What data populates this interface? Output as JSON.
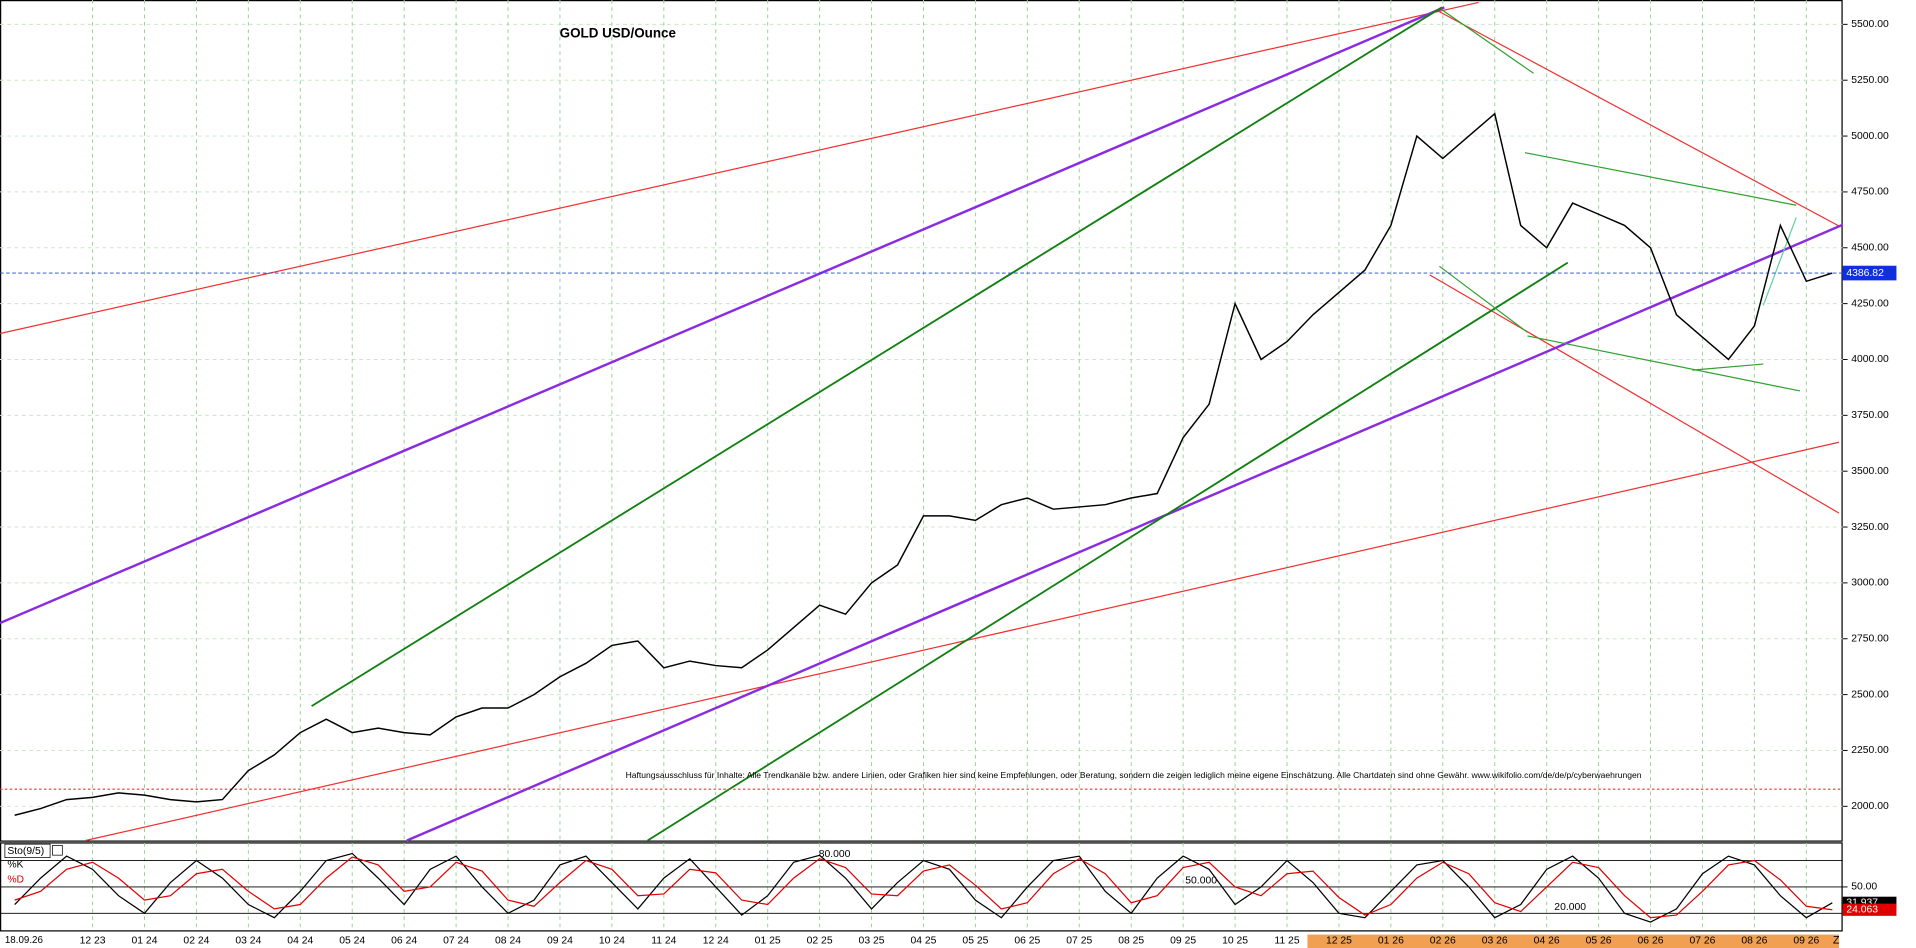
{
  "cursor_date": "18.09.26",
  "z_label": "Z",
  "disclaimer": "Haftungsausschluss für Inhalte: Alle Trendkanäle bzw. andere Linien, oder Grafiken hier sind keine Empfehlungen, oder Beratung, sondern die zeigen lediglich meine eigene Einschätzung. Alle Chartdaten sind ohne Gewähr. www.wikifolio.com/de/de/p/cyberwaehrungen",
  "chart_data": [
    {
      "type": "line",
      "title": "GOLD USD/Ounce",
      "color": "#000000",
      "categories": [
        null,
        null,
        null,
        "12 23",
        null,
        "01 24",
        null,
        "02 24",
        null,
        "03 24",
        null,
        "04 24",
        null,
        "05 24",
        null,
        "06 24",
        null,
        "07 24",
        null,
        "08 24",
        null,
        "09 24",
        null,
        "10 24",
        null,
        "11 24",
        null,
        "12 24",
        null,
        "01 25",
        null,
        "02 25",
        null,
        "03 25",
        null,
        "04 25",
        null,
        "05 25",
        null,
        "06 25",
        null,
        "07 25",
        null,
        "08 25",
        null,
        "09 25",
        null,
        "10 25",
        null,
        "11 25",
        null,
        "12 25",
        null,
        "01 26",
        null,
        "02 26",
        null,
        "03 26",
        null,
        "04 26",
        null,
        "05 26",
        null,
        "06 26",
        null,
        "07 26",
        null,
        "08 26",
        null,
        "09 26",
        null
      ],
      "values": [
        1960,
        1990,
        2030,
        2040,
        2060,
        2050,
        2030,
        2020,
        2030,
        2160,
        2230,
        2330,
        2390,
        2330,
        2350,
        2330,
        2320,
        2400,
        2440,
        2440,
        2500,
        2580,
        2640,
        2720,
        2740,
        2620,
        2650,
        2630,
        2620,
        2700,
        2800,
        2900,
        2860,
        3000,
        3080,
        3300,
        3300,
        3280,
        3350,
        3380,
        3330,
        3340,
        3350,
        3380,
        3400,
        3650,
        3800,
        4250,
        4000,
        4080,
        4200,
        4300,
        4400,
        4600,
        5000,
        4900,
        5000,
        5100,
        4600,
        4500,
        4700,
        4650,
        4600,
        4500,
        4200,
        4100,
        4000,
        4150,
        4600,
        4350,
        4386.82
      ],
      "last_price": 4386.82,
      "ylim": [
        1847,
        5609
      ],
      "yticks": [
        {
          "value": 2000,
          "label": "2000.00"
        },
        {
          "value": 2250,
          "label": "2250.00"
        },
        {
          "value": 2500,
          "label": "2500.00"
        },
        {
          "value": 2750,
          "label": "2750.00"
        },
        {
          "value": 3000,
          "label": "3000.00"
        },
        {
          "value": 3250,
          "label": "3250.00"
        },
        {
          "value": 3500,
          "label": "3500.00"
        },
        {
          "value": 3750,
          "label": "3750.00"
        },
        {
          "value": 4000,
          "label": "4000.00"
        },
        {
          "value": 4250,
          "label": "4250.00"
        },
        {
          "value": 4500,
          "label": "4500.00"
        },
        {
          "value": 4750,
          "label": "4750.00"
        },
        {
          "value": 5000,
          "label": "5000.00"
        },
        {
          "value": 5250,
          "label": "5250.00"
        },
        {
          "value": 5500,
          "label": "5500.00"
        }
      ],
      "grid": true
    },
    {
      "type": "line",
      "title": "Sto(9/5)",
      "series": [
        {
          "name": "%K",
          "color": "#000000",
          "values": [
            30,
            60,
            85,
            70,
            40,
            20,
            55,
            80,
            60,
            30,
            15,
            45,
            80,
            88,
            60,
            30,
            70,
            85,
            50,
            20,
            35,
            75,
            85,
            55,
            25,
            60,
            82,
            50,
            18,
            40,
            78,
            86,
            60,
            25,
            55,
            80,
            70,
            35,
            15,
            50,
            80,
            85,
            45,
            20,
            60,
            85,
            70,
            30,
            50,
            80,
            55,
            20,
            15,
            45,
            75,
            80,
            50,
            15,
            30,
            70,
            85,
            60,
            20,
            10,
            25,
            65,
            85,
            75,
            40,
            15,
            31.937
          ]
        },
        {
          "name": "%D",
          "color": "#e00000",
          "values": [
            35,
            45,
            70,
            78,
            60,
            35,
            40,
            65,
            70,
            45,
            25,
            30,
            60,
            84,
            75,
            45,
            50,
            78,
            68,
            35,
            28,
            55,
            80,
            70,
            40,
            42,
            70,
            66,
            35,
            30,
            60,
            82,
            72,
            42,
            40,
            68,
            75,
            52,
            25,
            32,
            65,
            82,
            65,
            32,
            40,
            72,
            78,
            50,
            40,
            65,
            68,
            38,
            18,
            30,
            60,
            78,
            65,
            32,
            22,
            50,
            78,
            72,
            40,
            15,
            18,
            45,
            75,
            80,
            58,
            28,
            24.063
          ]
        }
      ],
      "ylim": [
        0,
        100
      ],
      "levels": [
        {
          "value": 80,
          "label": "80.000"
        },
        {
          "value": 50,
          "label": "50.000"
        },
        {
          "value": 20,
          "label": "20.000"
        }
      ],
      "yticks": [
        {
          "value": 50,
          "label": "50.00"
        }
      ]
    }
  ]
}
